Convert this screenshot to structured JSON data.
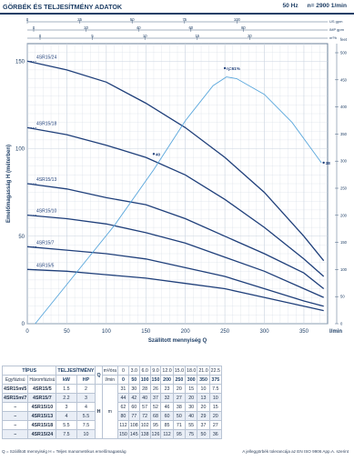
{
  "header": {
    "title": "GÖRBÉK ÉS TELJESÍTMÉNY ADATOK",
    "freq": "50 Hz",
    "speed": "n= 2900 1/min"
  },
  "colors": {
    "curve": "#1f3f7a",
    "efficiency": "#5aa7dc",
    "grid": "#c9d3df",
    "axis": "#1f3f66"
  },
  "chart_data": {
    "type": "line",
    "xlabel": "Szállított mennyiség  Q",
    "ylabel": "Emelőmagasság  H (méterben)",
    "xlim": [
      0,
      380
    ],
    "ylim": [
      0,
      160
    ],
    "x_ticks": [
      0,
      50,
      100,
      150,
      200,
      250,
      300,
      350
    ],
    "y_ticks": [
      0,
      50,
      100,
      150
    ],
    "x_unit": "l/min",
    "top_axes": [
      {
        "unit": "US gpm",
        "ticks": [
          "0",
          "25",
          "50",
          "75",
          "100"
        ]
      },
      {
        "unit": "IMP gpm",
        "ticks": [
          "0",
          "20",
          "40",
          "60",
          "80"
        ]
      },
      {
        "unit": "m³/h",
        "ticks": [
          "0",
          "5",
          "10",
          "15",
          "20"
        ]
      }
    ],
    "right_axis": {
      "unit": "feet",
      "ticks": [
        "0",
        "50",
        "100",
        "150",
        "200",
        "250",
        "300",
        "350",
        "400",
        "450",
        "500"
      ]
    },
    "series": [
      {
        "name": "4SR15/24",
        "x": [
          0,
          50,
          100,
          150,
          200,
          250,
          300,
          350,
          375
        ],
        "y": [
          150,
          145,
          138,
          126,
          112,
          95,
          75,
          50,
          36
        ]
      },
      {
        "name": "4SR15/18",
        "x": [
          0,
          50,
          100,
          150,
          200,
          250,
          300,
          350,
          375
        ],
        "y": [
          112,
          108,
          102,
          95,
          85,
          71,
          55,
          37,
          27
        ]
      },
      {
        "name": "4SR15/13",
        "x": [
          0,
          50,
          100,
          150,
          200,
          250,
          300,
          350,
          375
        ],
        "y": [
          80,
          77,
          72,
          68,
          60,
          50,
          40,
          29,
          20
        ]
      },
      {
        "name": "4SR15/10",
        "x": [
          0,
          50,
          100,
          150,
          200,
          250,
          300,
          350,
          375
        ],
        "y": [
          62,
          60,
          57,
          52,
          46,
          38,
          30,
          20,
          15
        ]
      },
      {
        "name": "4SR15/7",
        "x": [
          0,
          50,
          100,
          150,
          200,
          250,
          300,
          350,
          375
        ],
        "y": [
          44,
          42,
          40,
          37,
          32,
          27,
          20,
          13,
          10
        ]
      },
      {
        "name": "4SR15/5",
        "x": [
          0,
          50,
          100,
          150,
          200,
          250,
          300,
          350,
          375
        ],
        "y": [
          31,
          30,
          28,
          26,
          23,
          20,
          15,
          10,
          7.5
        ]
      }
    ],
    "efficiency_curve": {
      "x": [
        10,
        60,
        110,
        160,
        200,
        235,
        252,
        265,
        300,
        335,
        372
      ],
      "y": [
        0,
        28,
        56,
        88,
        116,
        136,
        141,
        140,
        131,
        115,
        92
      ],
      "labels": [
        {
          "text": "40",
          "x": 160,
          "y": 97
        },
        {
          "text": "η=61%",
          "x": 250,
          "y": 146
        },
        {
          "text": "38",
          "x": 375,
          "y": 92
        }
      ]
    }
  },
  "table": {
    "h_tipus": "TÍPUS",
    "h_egyfazisu": "Egyfázisú",
    "h_haromfazisu": "Háromfázisú",
    "h_telj": "TELJESÍTMÉNY",
    "h_kw": "kW",
    "h_hp": "HP",
    "h_q": "Q",
    "h_m3h": "m³/óra",
    "h_lmin": "l/min",
    "h_h": "H",
    "h_m": "m",
    "q_m3h": [
      "0",
      "3.0",
      "6.0",
      "9.0",
      "12.0",
      "15.0",
      "18.0",
      "21.0",
      "22.5"
    ],
    "q_lmin": [
      "0",
      "50",
      "100",
      "150",
      "200",
      "250",
      "300",
      "350",
      "375"
    ],
    "rows": [
      {
        "single": "4SR15m/5",
        "three": "4SR15/5",
        "kw": "1.5",
        "hp": "2",
        "h": [
          "31",
          "30",
          "28",
          "26",
          "23",
          "20",
          "15",
          "10",
          "7.5"
        ]
      },
      {
        "single": "4SR15m/7",
        "three": "4SR15/7",
        "kw": "2.2",
        "hp": "3",
        "h": [
          "44",
          "42",
          "40",
          "37",
          "32",
          "27",
          "20",
          "13",
          "10"
        ]
      },
      {
        "single": "–",
        "three": "4SR15/10",
        "kw": "3",
        "hp": "4",
        "h": [
          "62",
          "60",
          "57",
          "52",
          "46",
          "38",
          "30",
          "20",
          "15"
        ]
      },
      {
        "single": "–",
        "three": "4SR15/13",
        "kw": "4",
        "hp": "5.5",
        "h": [
          "80",
          "77",
          "72",
          "68",
          "60",
          "50",
          "40",
          "29",
          "20"
        ]
      },
      {
        "single": "–",
        "three": "4SR15/18",
        "kw": "5.5",
        "hp": "7.5",
        "h": [
          "112",
          "108",
          "102",
          "95",
          "85",
          "71",
          "55",
          "37",
          "27"
        ]
      },
      {
        "single": "–",
        "three": "4SR15/24",
        "kw": "7.5",
        "hp": "10",
        "h": [
          "150",
          "145",
          "138",
          "126",
          "112",
          "95",
          "75",
          "50",
          "36"
        ]
      }
    ]
  },
  "footer": {
    "left": "Q = Szállított mennyiség   H = Teljes manometrikus emelőmagasság",
    "right": "A jelleggörbék tolerancája az EN ISO 9906 App.A. szerint"
  }
}
